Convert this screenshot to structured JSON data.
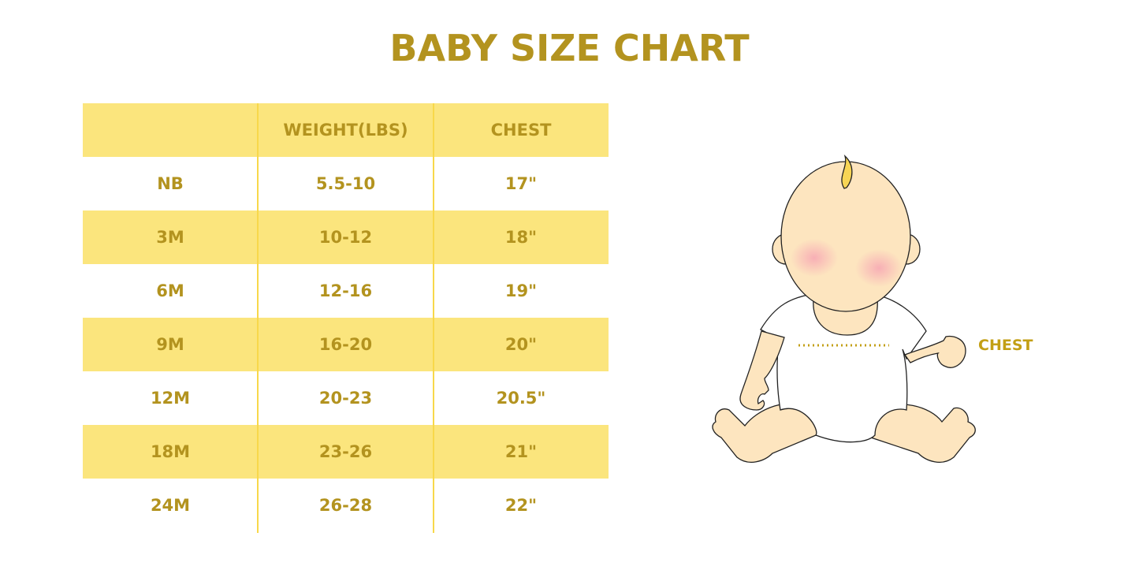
{
  "title": "BABY SIZE CHART",
  "table": {
    "headers": [
      "",
      "WEIGHT(LBS)",
      "CHEST"
    ],
    "rows": [
      [
        "NB",
        "5.5-10",
        "17\""
      ],
      [
        "3M",
        "10-12",
        "18\""
      ],
      [
        "6M",
        "12-16",
        "19\""
      ],
      [
        "9M",
        "16-20",
        "20\""
      ],
      [
        "12M",
        "20-23",
        "20.5\""
      ],
      [
        "18M",
        "23-26",
        "21\""
      ],
      [
        "24M",
        "26-28",
        "22\""
      ]
    ]
  },
  "illustration": {
    "chest_label": "CHEST"
  },
  "colors": {
    "text": "#b3931f",
    "band": "#fbe57d",
    "divider": "#f8d84a",
    "skin": "#fde5bf"
  }
}
